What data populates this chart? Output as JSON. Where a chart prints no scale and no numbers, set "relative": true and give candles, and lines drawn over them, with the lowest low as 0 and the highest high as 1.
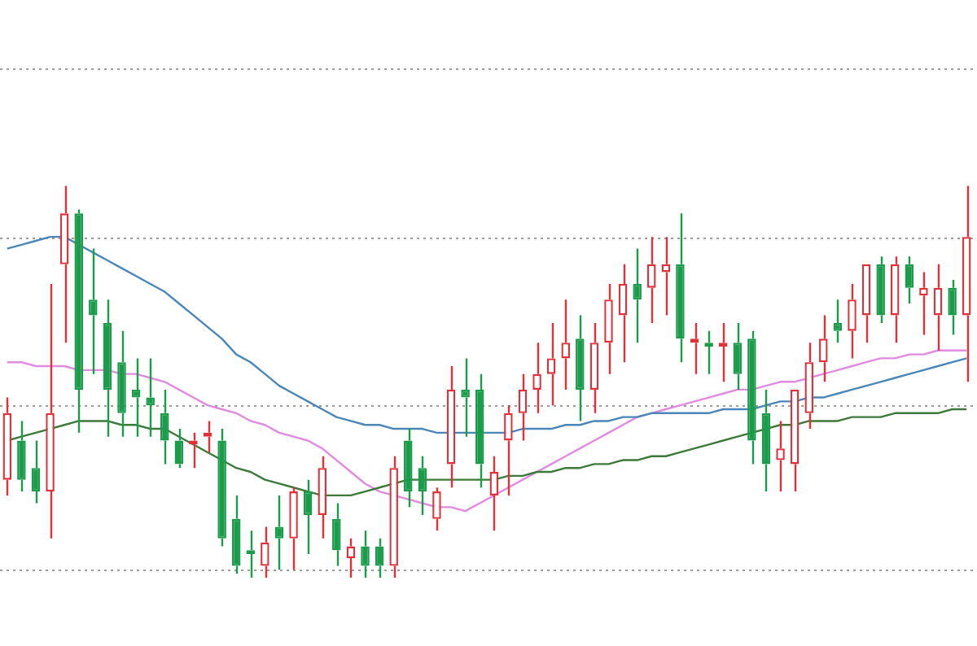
{
  "chart_data": {
    "type": "candlestick",
    "relative": true,
    "ref_lines": [
      {
        "axis": "y",
        "value": 1.3,
        "color": "#9a9a9a",
        "line_style": "dotted"
      },
      {
        "axis": "y",
        "value": 0.87,
        "color": "#9a9a9a",
        "line_style": "dotted"
      },
      {
        "axis": "y",
        "value": 0.44,
        "color": "#9a9a9a",
        "line_style": "dotted"
      },
      {
        "axis": "y",
        "value": 0.02,
        "color": "#9a9a9a",
        "line_style": "dotted"
      }
    ],
    "categories": [
      null,
      null,
      null,
      null,
      null,
      null,
      null,
      null,
      null,
      null,
      null,
      null,
      null,
      null,
      null,
      null,
      null,
      null,
      null,
      null,
      null,
      null,
      null,
      null,
      null,
      null,
      null,
      null,
      null,
      null,
      null,
      null,
      null,
      null,
      null,
      null,
      null,
      null,
      null,
      null,
      null,
      null,
      null,
      null,
      null,
      null,
      null,
      null,
      null,
      null,
      null,
      null,
      null,
      null,
      null,
      null,
      null,
      null,
      null,
      null,
      null,
      null,
      null,
      null,
      null,
      null,
      null,
      null
    ],
    "ohlc": [
      [
        0.25,
        0.46,
        0.21,
        0.42
      ],
      [
        0.35,
        0.4,
        0.22,
        0.25
      ],
      [
        0.28,
        0.35,
        0.19,
        0.22
      ],
      [
        0.22,
        0.75,
        0.1,
        0.42
      ],
      [
        0.8,
        1,
        0.6,
        0.93
      ],
      [
        0.93,
        0.94,
        0.37,
        0.48
      ],
      [
        0.71,
        0.84,
        0.52,
        0.67
      ],
      [
        0.65,
        0.71,
        0.36,
        0.48
      ],
      [
        0.55,
        0.63,
        0.36,
        0.42
      ],
      [
        0.48,
        0.56,
        0.36,
        0.46
      ],
      [
        0.46,
        0.56,
        0.36,
        0.44
      ],
      [
        0.42,
        0.48,
        0.29,
        0.35
      ],
      [
        0.35,
        0.38,
        0.28,
        0.29
      ],
      [
        0.34,
        0.37,
        0.28,
        0.35
      ],
      [
        0.36,
        0.4,
        0.32,
        0.37
      ],
      [
        0.35,
        0.38,
        0.08,
        0.1
      ],
      [
        0.15,
        0.21,
        0.01,
        0.03
      ],
      [
        0.07,
        0.12,
        0,
        0.06
      ],
      [
        0.03,
        0.13,
        0,
        0.09
      ],
      [
        0.13,
        0.21,
        0.02,
        0.1
      ],
      [
        0.1,
        0.23,
        0.02,
        0.22
      ],
      [
        0.22,
        0.25,
        0.06,
        0.16
      ],
      [
        0.16,
        0.31,
        0.1,
        0.28
      ],
      [
        0.15,
        0.19,
        0.03,
        0.07
      ],
      [
        0.05,
        0.1,
        0,
        0.08
      ],
      [
        0.08,
        0.12,
        0,
        0.03
      ],
      [
        0.08,
        0.1,
        0,
        0.03
      ],
      [
        0.03,
        0.31,
        0,
        0.28
      ],
      [
        0.35,
        0.38,
        0.18,
        0.22
      ],
      [
        0.28,
        0.31,
        0.16,
        0.22
      ],
      [
        0.15,
        0.23,
        0.12,
        0.22
      ],
      [
        0.29,
        0.54,
        0.23,
        0.48
      ],
      [
        0.48,
        0.56,
        0.36,
        0.46
      ],
      [
        0.48,
        0.52,
        0.23,
        0.29
      ],
      [
        0.21,
        0.31,
        0.12,
        0.27
      ],
      [
        0.35,
        0.44,
        0.21,
        0.42
      ],
      [
        0.42,
        0.52,
        0.35,
        0.48
      ],
      [
        0.48,
        0.6,
        0.42,
        0.52
      ],
      [
        0.52,
        0.65,
        0.44,
        0.56
      ],
      [
        0.56,
        0.71,
        0.48,
        0.6
      ],
      [
        0.61,
        0.67,
        0.4,
        0.48
      ],
      [
        0.48,
        0.65,
        0.42,
        0.6
      ],
      [
        0.6,
        0.75,
        0.52,
        0.71
      ],
      [
        0.67,
        0.8,
        0.55,
        0.75
      ],
      [
        0.75,
        0.84,
        0.6,
        0.71
      ],
      [
        0.74,
        0.87,
        0.65,
        0.8
      ],
      [
        0.78,
        0.87,
        0.67,
        0.8
      ],
      [
        0.8,
        0.93,
        0.55,
        0.61
      ],
      [
        0.6,
        0.65,
        0.52,
        0.61
      ],
      [
        0.6,
        0.63,
        0.52,
        0.59
      ],
      [
        0.59,
        0.65,
        0.5,
        0.6
      ],
      [
        0.6,
        0.65,
        0.48,
        0.52
      ],
      [
        0.61,
        0.63,
        0.29,
        0.35
      ],
      [
        0.42,
        0.48,
        0.22,
        0.29
      ],
      [
        0.3,
        0.4,
        0.22,
        0.33
      ],
      [
        0.29,
        0.48,
        0.22,
        0.48
      ],
      [
        0.42,
        0.6,
        0.38,
        0.55
      ],
      [
        0.55,
        0.67,
        0.5,
        0.61
      ],
      [
        0.65,
        0.71,
        0.6,
        0.63
      ],
      [
        0.63,
        0.75,
        0.56,
        0.71
      ],
      [
        0.67,
        0.8,
        0.6,
        0.8
      ],
      [
        0.8,
        0.82,
        0.65,
        0.67
      ],
      [
        0.67,
        0.82,
        0.6,
        0.8
      ],
      [
        0.8,
        0.82,
        0.7,
        0.74
      ],
      [
        0.72,
        0.78,
        0.62,
        0.74
      ],
      [
        0.67,
        0.8,
        0.58,
        0.74
      ],
      [
        0.74,
        0.76,
        0.62,
        0.67
      ],
      [
        0.67,
        1,
        0.5,
        0.87
      ]
    ],
    "series": [
      {
        "type": "line",
        "color": "#4a86b8",
        "values": [
          0.84,
          0.85,
          0.86,
          0.87,
          0.87,
          0.85,
          0.83,
          0.81,
          0.79,
          0.77,
          0.75,
          0.73,
          0.7,
          0.67,
          0.64,
          0.61,
          0.57,
          0.55,
          0.52,
          0.49,
          0.47,
          0.45,
          0.43,
          0.41,
          0.4,
          0.39,
          0.39,
          0.38,
          0.38,
          0.38,
          0.37,
          0.37,
          0.37,
          0.37,
          0.37,
          0.37,
          0.38,
          0.38,
          0.38,
          0.39,
          0.39,
          0.4,
          0.4,
          0.41,
          0.41,
          0.42,
          0.42,
          0.42,
          0.42,
          0.42,
          0.43,
          0.43,
          0.43,
          0.44,
          0.45,
          0.45,
          0.46,
          0.46,
          0.47,
          0.48,
          0.49,
          0.5,
          0.51,
          0.52,
          0.53,
          0.54,
          0.55,
          0.56
        ]
      },
      {
        "type": "line",
        "color": "#3d7a3a",
        "values": [
          0.35,
          0.36,
          0.37,
          0.38,
          0.39,
          0.4,
          0.4,
          0.4,
          0.39,
          0.39,
          0.38,
          0.38,
          0.36,
          0.34,
          0.32,
          0.3,
          0.28,
          0.27,
          0.25,
          0.24,
          0.23,
          0.22,
          0.21,
          0.21,
          0.21,
          0.22,
          0.23,
          0.24,
          0.25,
          0.25,
          0.25,
          0.25,
          0.25,
          0.25,
          0.25,
          0.26,
          0.26,
          0.27,
          0.27,
          0.28,
          0.28,
          0.29,
          0.29,
          0.3,
          0.3,
          0.31,
          0.31,
          0.32,
          0.33,
          0.34,
          0.35,
          0.36,
          0.37,
          0.38,
          0.39,
          0.39,
          0.4,
          0.4,
          0.4,
          0.41,
          0.41,
          0.41,
          0.42,
          0.42,
          0.42,
          0.42,
          0.43,
          0.43
        ]
      },
      {
        "type": "line",
        "color": "#e08ae0",
        "values": [
          0.55,
          0.55,
          0.54,
          0.54,
          0.54,
          0.53,
          0.53,
          0.53,
          0.52,
          0.52,
          0.51,
          0.5,
          0.48,
          0.46,
          0.44,
          0.43,
          0.42,
          0.4,
          0.39,
          0.37,
          0.36,
          0.35,
          0.33,
          0.3,
          0.27,
          0.24,
          0.22,
          0.21,
          0.2,
          0.19,
          0.18,
          0.18,
          0.17,
          0.19,
          0.21,
          0.23,
          0.25,
          0.27,
          0.29,
          0.31,
          0.33,
          0.35,
          0.37,
          0.39,
          0.41,
          0.42,
          0.43,
          0.44,
          0.45,
          0.46,
          0.47,
          0.48,
          0.48,
          0.49,
          0.5,
          0.5,
          0.51,
          0.52,
          0.53,
          0.54,
          0.55,
          0.56,
          0.56,
          0.57,
          0.57,
          0.58,
          0.58,
          0.58
        ]
      }
    ],
    "colors": [
      "#e0303a",
      "#1a9c4a",
      "#1a9c4a",
      "#e0303a",
      "#e0303a",
      "#1a9c4a",
      "#1a9c4a",
      "#1a9c4a",
      "#1a9c4a",
      "#1a9c4a",
      "#1a9c4a",
      "#1a9c4a",
      "#1a9c4a",
      "#e0303a",
      "#e0303a",
      "#1a9c4a",
      "#1a9c4a",
      "#1a9c4a",
      "#e0303a",
      "#1a9c4a",
      "#e0303a",
      "#1a9c4a",
      "#e0303a",
      "#1a9c4a",
      "#e0303a",
      "#1a9c4a",
      "#1a9c4a",
      "#e0303a",
      "#1a9c4a",
      "#1a9c4a",
      "#e0303a",
      "#e0303a",
      "#1a9c4a",
      "#1a9c4a",
      "#e0303a",
      "#e0303a",
      "#e0303a",
      "#e0303a",
      "#e0303a",
      "#e0303a",
      "#1a9c4a",
      "#e0303a",
      "#e0303a",
      "#e0303a",
      "#1a9c4a",
      "#e0303a",
      "#e0303a",
      "#1a9c4a",
      "#e0303a",
      "#1a9c4a",
      "#e0303a",
      "#1a9c4a",
      "#1a9c4a",
      "#1a9c4a",
      "#e0303a",
      "#e0303a",
      "#e0303a",
      "#e0303a",
      "#1a9c4a",
      "#e0303a",
      "#e0303a",
      "#1a9c4a",
      "#e0303a",
      "#1a9c4a",
      "#e0303a",
      "#e0303a",
      "#1a9c4a",
      "#e0303a"
    ]
  }
}
